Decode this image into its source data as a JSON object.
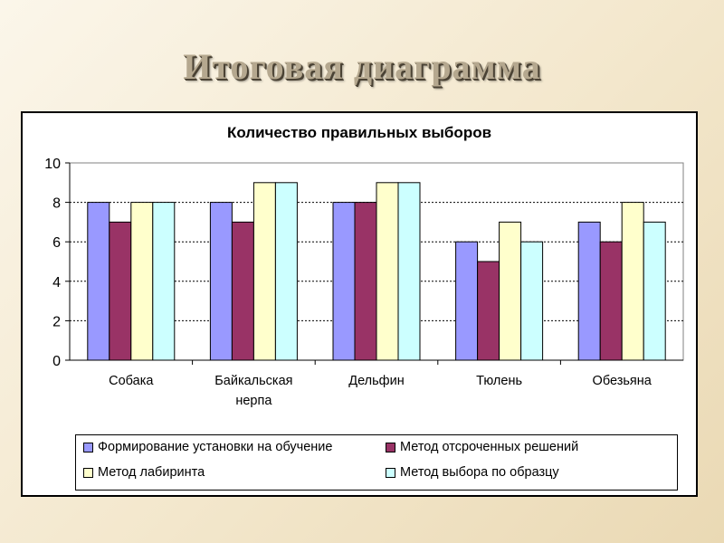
{
  "slide": {
    "title": "Итоговая диаграмма"
  },
  "chart_data": {
    "type": "bar",
    "title": "Количество правильных выборов",
    "xlabel": "",
    "ylabel": "",
    "categories": [
      "Собака",
      "Байкальская нерпа",
      "Дельфин",
      "Тюлень",
      "Обезьяна"
    ],
    "category_lines": [
      [
        "Собака"
      ],
      [
        "Байкальская",
        "нерпа"
      ],
      [
        "Дельфин"
      ],
      [
        "Тюлень"
      ],
      [
        "Обезьяна"
      ]
    ],
    "series": [
      {
        "name": "Формирование установки на обучение",
        "values": [
          8,
          8,
          8,
          6,
          7
        ],
        "color": "#9999ff"
      },
      {
        "name": "Метод отсроченных решений",
        "values": [
          7,
          7,
          8,
          5,
          6
        ],
        "color": "#993366"
      },
      {
        "name": "Метод лабиринта",
        "values": [
          8,
          9,
          9,
          7,
          8
        ],
        "color": "#ffffcc"
      },
      {
        "name": "Метод выбора по образцу",
        "values": [
          8,
          9,
          9,
          6,
          7
        ],
        "color": "#ccffff"
      }
    ],
    "ylim": [
      0,
      10
    ],
    "yticks": [
      0,
      2,
      4,
      6,
      8,
      10
    ],
    "grid": true,
    "legend_position": "bottom"
  }
}
